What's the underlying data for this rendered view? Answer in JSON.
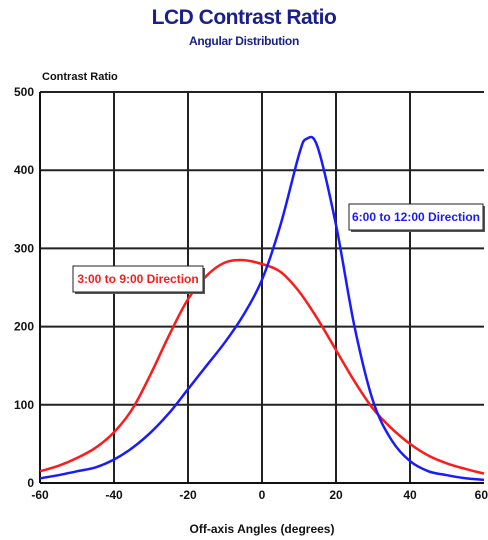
{
  "chart_data": {
    "type": "line",
    "title": "LCD Contrast Ratio",
    "subtitle": "Angular Distribution",
    "ylabel": "Contrast Ratio",
    "xlabel": "Off-axis Angles (degrees)",
    "xlim": [
      -60,
      60
    ],
    "ylim": [
      0,
      500
    ],
    "xticks": [
      -60,
      -40,
      -20,
      0,
      20,
      40,
      60
    ],
    "yticks": [
      0,
      100,
      200,
      300,
      400,
      500
    ],
    "grid": true,
    "series": [
      {
        "name": "3:00 to 9:00 Direction",
        "color": "#ff1a1a",
        "x": [
          -60,
          -55,
          -50,
          -45,
          -40,
          -35,
          -30,
          -25,
          -20,
          -15,
          -10,
          -5,
          0,
          5,
          10,
          15,
          20,
          25,
          30,
          35,
          40,
          45,
          50,
          55,
          60
        ],
        "y": [
          15,
          22,
          32,
          45,
          65,
          95,
          140,
          190,
          235,
          265,
          282,
          285,
          280,
          270,
          245,
          210,
          170,
          130,
          95,
          70,
          50,
          35,
          25,
          18,
          12
        ]
      },
      {
        "name": "6:00 to 12:00 Direction",
        "color": "#1a1aff",
        "x": [
          -60,
          -55,
          -50,
          -45,
          -40,
          -35,
          -30,
          -25,
          -20,
          -15,
          -10,
          -5,
          0,
          5,
          10,
          12,
          15,
          20,
          25,
          30,
          35,
          40,
          45,
          50,
          55,
          60
        ],
        "y": [
          6,
          10,
          15,
          20,
          30,
          45,
          65,
          90,
          120,
          150,
          180,
          215,
          260,
          330,
          420,
          440,
          430,
          330,
          200,
          105,
          55,
          28,
          15,
          10,
          6,
          4
        ]
      }
    ]
  }
}
